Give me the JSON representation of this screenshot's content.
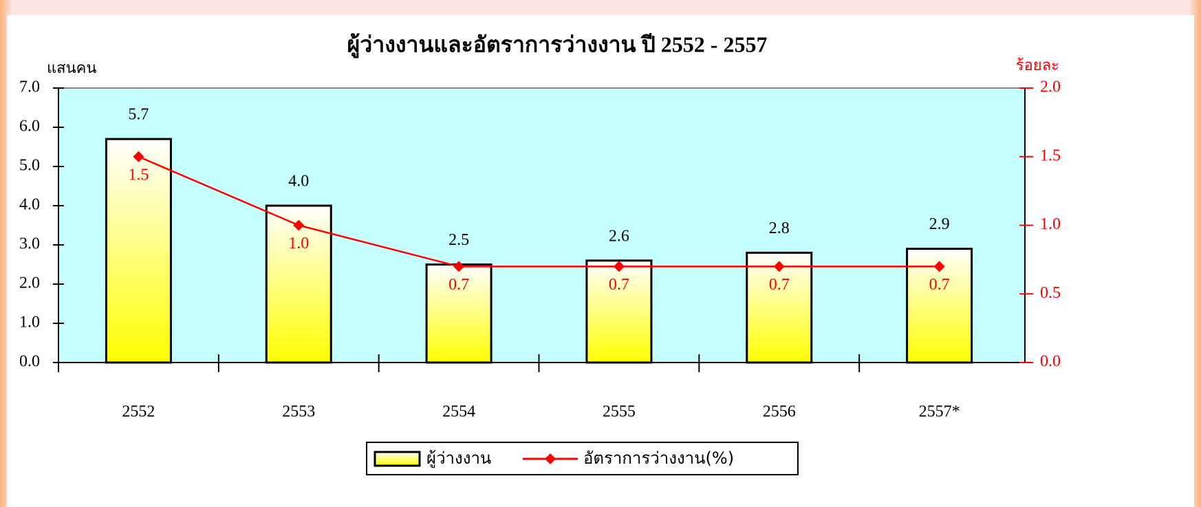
{
  "chart_data": {
    "type": "bar",
    "title": "ผู้ว่างงานและอัตราการว่างงาน ปี 2552 - 2557",
    "y_label": "แสนคน",
    "y2_label": "ร้อยละ",
    "categories": [
      "2552",
      "2553",
      "2554",
      "2555",
      "2556",
      "2557*"
    ],
    "series": [
      {
        "name": "ผู้ว่างงาน",
        "type": "bar",
        "color": "#ffff00",
        "values": [
          5.7,
          4.0,
          2.5,
          2.6,
          2.8,
          2.9
        ],
        "value_labels": [
          "5.7",
          "4.0",
          "2.5",
          "2.6",
          "2.8",
          "2.9"
        ]
      },
      {
        "name": "อัตราการว่างงาน(%)",
        "type": "line",
        "axis": "y2",
        "color": "#ff0000",
        "values": [
          1.5,
          1.0,
          0.7,
          0.7,
          0.7,
          0.7
        ],
        "value_labels": [
          "1.5",
          "1.0",
          "0.7",
          "0.7",
          "0.7",
          "0.7"
        ]
      }
    ],
    "ylim": [
      0,
      7
    ],
    "yticks": [
      {
        "value": 0,
        "label": "0.0"
      },
      {
        "value": 1,
        "label": "1.0"
      },
      {
        "value": 2,
        "label": "2.0"
      },
      {
        "value": 3,
        "label": "3.0"
      },
      {
        "value": 4,
        "label": "4.0"
      },
      {
        "value": 5,
        "label": "5.0"
      },
      {
        "value": 6,
        "label": "6.0"
      },
      {
        "value": 7,
        "label": "7.0"
      }
    ],
    "y2lim": [
      0,
      2
    ],
    "y2ticks": [
      {
        "value": 0,
        "label": "0.0"
      },
      {
        "value": 0.5,
        "label": "0.5"
      },
      {
        "value": 1,
        "label": "1.0"
      },
      {
        "value": 1.5,
        "label": "1.5"
      },
      {
        "value": 2,
        "label": "2.0"
      }
    ],
    "legend": "bottom",
    "grid": false
  }
}
